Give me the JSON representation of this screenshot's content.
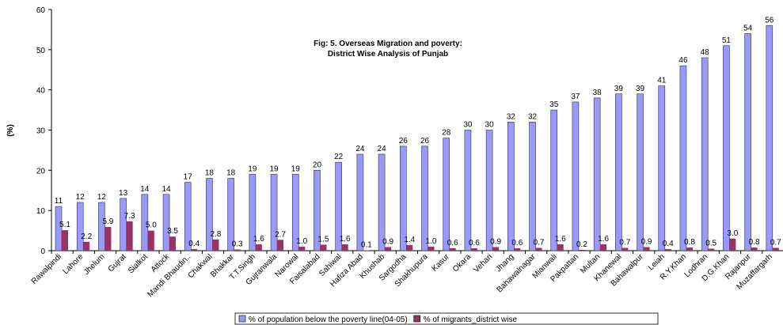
{
  "chart_data": {
    "type": "bar",
    "title": [
      "Fig: 5. Overseas Migration and poverty:",
      "District Wise Analysis of Punjab"
    ],
    "y_label": "(%)",
    "categories": [
      "Rawalpindi",
      "Lahore",
      "Jhelum",
      "Gujrat",
      "Sialkot",
      "Attock",
      "Mandi Bhaudin..",
      "Chakwal",
      "Bhakkar",
      "T.T.Singh",
      "Gujranwala",
      "Narowal",
      "Faisalabad",
      "Sahiwal",
      "Hafiza Abad",
      "Khushab",
      "Sargodha",
      "Shakhupura",
      "Kasur",
      "Okara",
      "Vehari",
      "Jhang",
      "Bahawalnagar",
      "Mianwali",
      "Pakpattan",
      "Multan",
      "Khanewal",
      "Bahawalpur",
      "Leiah",
      "R.Y.Khan",
      "Lodhran",
      "D.G.Khan",
      "Rajanpur",
      "Muzaffargarh"
    ],
    "series": [
      {
        "name": "% of population below the poverty line(04-05)",
        "color": "#9999ff",
        "values": [
          11,
          12,
          12,
          13,
          14,
          14,
          17,
          18,
          18,
          19,
          19,
          19,
          20,
          22,
          24,
          24,
          26,
          26,
          28,
          30,
          30,
          32,
          32,
          35,
          37,
          38,
          39,
          39,
          41,
          46,
          48,
          51,
          54,
          56
        ]
      },
      {
        "name": "% of migrants_district wise",
        "color": "#993366",
        "values": [
          5.1,
          2.2,
          5.9,
          7.3,
          5.0,
          3.5,
          0.4,
          2.8,
          0.3,
          1.6,
          2.7,
          1.0,
          1.5,
          1.6,
          0.1,
          0.9,
          1.4,
          1.0,
          0.6,
          0.6,
          0.9,
          0.6,
          0.7,
          1.6,
          0.2,
          1.6,
          0.7,
          0.9,
          0.4,
          0.8,
          0.5,
          3.0,
          0.8,
          0.7
        ],
        "value_labels": [
          "5.1",
          "2.2",
          "5.9",
          "7.3",
          "5.0",
          "3.5",
          "0.4",
          "2.8",
          "0.3",
          "1.6",
          "2.7",
          "1.0",
          "1.5",
          "1.6",
          "0.1",
          "0.9",
          "1.4",
          "1.0",
          "0.6",
          "0.6",
          "0.9",
          "0.6",
          "0.7",
          "1.6",
          "0.2",
          "1.6",
          "0.7",
          "0.9",
          "0.4",
          "0.8",
          "0.5",
          "3.0",
          "0.8",
          "0.7"
        ]
      }
    ],
    "ylim": [
      0,
      60
    ],
    "yticks": [
      0,
      10,
      20,
      30,
      40,
      50,
      60
    ],
    "grid": false,
    "legend": "bottom"
  }
}
